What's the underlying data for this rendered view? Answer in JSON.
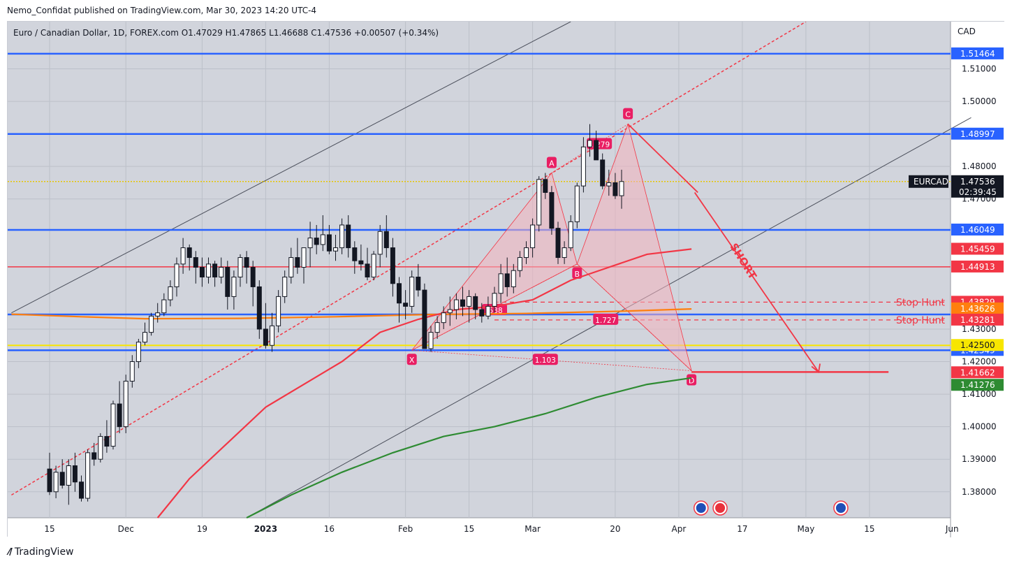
{
  "header": {
    "published": "Nemo_Confidat published on TradingView.com, Mar 30, 2023 14:20 UTC-4"
  },
  "legend": {
    "symbol": "Euro / Canadian Dollar, 1D, FOREX.com",
    "open": "O1.47029",
    "high": "H1.47865",
    "low": "L1.46688",
    "close": "C1.47536",
    "change": "+0.00507 (+0.34%)"
  },
  "footer": {
    "brand": "TradingView"
  },
  "colors": {
    "bg": "#d1d4dc",
    "blue": "#2962ff",
    "red": "#f23645",
    "orange": "#ff7f0e",
    "green": "#2e8b32",
    "yellow": "#f7e600",
    "pattern": "#f4b3bd"
  },
  "chart_data": {
    "type": "candlestick",
    "currency": "CAD",
    "ylim": [
      1.372,
      1.5245
    ],
    "y_ticks": [
      "1.51000",
      "1.50000",
      "1.48000",
      "1.47000",
      "1.43000",
      "1.42000",
      "1.41000",
      "1.40000",
      "1.39000",
      "1.38000"
    ],
    "x_labels": [
      {
        "label": "15",
        "i": 0
      },
      {
        "label": "Dec",
        "i": 12
      },
      {
        "label": "19",
        "i": 24
      },
      {
        "label": "2023",
        "i": 34
      },
      {
        "label": "16",
        "i": 44
      },
      {
        "label": "Feb",
        "i": 56
      },
      {
        "label": "15",
        "i": 66
      },
      {
        "label": "Mar",
        "i": 76
      },
      {
        "label": "20",
        "i": 89
      },
      {
        "label": "Apr",
        "i": 99
      },
      {
        "label": "17",
        "i": 109
      },
      {
        "label": "May",
        "i": 119
      },
      {
        "label": "15",
        "i": 129
      },
      {
        "label": "Jun",
        "i": 142
      }
    ],
    "candles": [
      [
        1.387,
        1.392,
        1.379,
        1.38
      ],
      [
        1.38,
        1.388,
        1.378,
        1.386
      ],
      [
        1.386,
        1.39,
        1.381,
        1.382
      ],
      [
        1.382,
        1.39,
        1.376,
        1.388
      ],
      [
        1.388,
        1.392,
        1.38,
        1.383
      ],
      [
        1.383,
        1.385,
        1.377,
        1.378
      ],
      [
        1.378,
        1.393,
        1.377,
        1.392
      ],
      [
        1.392,
        1.395,
        1.388,
        1.39
      ],
      [
        1.39,
        1.398,
        1.389,
        1.397
      ],
      [
        1.397,
        1.402,
        1.392,
        1.394
      ],
      [
        1.394,
        1.408,
        1.393,
        1.407
      ],
      [
        1.407,
        1.414,
        1.398,
        1.4
      ],
      [
        1.4,
        1.416,
        1.398,
        1.414
      ],
      [
        1.414,
        1.422,
        1.412,
        1.42
      ],
      [
        1.42,
        1.427,
        1.418,
        1.426
      ],
      [
        1.426,
        1.432,
        1.425,
        1.429
      ],
      [
        1.429,
        1.435,
        1.428,
        1.434
      ],
      [
        1.434,
        1.438,
        1.432,
        1.435
      ],
      [
        1.435,
        1.441,
        1.434,
        1.439
      ],
      [
        1.439,
        1.445,
        1.437,
        1.443
      ],
      [
        1.443,
        1.452,
        1.44,
        1.45
      ],
      [
        1.45,
        1.458,
        1.447,
        1.455
      ],
      [
        1.455,
        1.456,
        1.448,
        1.452
      ],
      [
        1.452,
        1.454,
        1.444,
        1.449
      ],
      [
        1.449,
        1.452,
        1.443,
        1.446
      ],
      [
        1.446,
        1.452,
        1.444,
        1.45
      ],
      [
        1.45,
        1.451,
        1.443,
        1.446
      ],
      [
        1.446,
        1.452,
        1.444,
        1.449
      ],
      [
        1.449,
        1.451,
        1.436,
        1.44
      ],
      [
        1.44,
        1.448,
        1.436,
        1.446
      ],
      [
        1.446,
        1.453,
        1.443,
        1.452
      ],
      [
        1.452,
        1.454,
        1.444,
        1.449
      ],
      [
        1.449,
        1.451,
        1.437,
        1.443
      ],
      [
        1.443,
        1.445,
        1.427,
        1.43
      ],
      [
        1.43,
        1.438,
        1.424,
        1.425
      ],
      [
        1.425,
        1.435,
        1.423,
        1.431
      ],
      [
        1.431,
        1.442,
        1.429,
        1.44
      ],
      [
        1.44,
        1.448,
        1.438,
        1.446
      ],
      [
        1.446,
        1.455,
        1.444,
        1.452
      ],
      [
        1.452,
        1.458,
        1.447,
        1.449
      ],
      [
        1.449,
        1.455,
        1.444,
        1.455
      ],
      [
        1.455,
        1.463,
        1.449,
        1.458
      ],
      [
        1.458,
        1.462,
        1.453,
        1.456
      ],
      [
        1.456,
        1.465,
        1.454,
        1.459
      ],
      [
        1.459,
        1.462,
        1.453,
        1.454
      ],
      [
        1.454,
        1.459,
        1.451,
        1.455
      ],
      [
        1.455,
        1.464,
        1.453,
        1.462
      ],
      [
        1.462,
        1.465,
        1.452,
        1.455
      ],
      [
        1.455,
        1.457,
        1.447,
        1.451
      ],
      [
        1.451,
        1.456,
        1.448,
        1.45
      ],
      [
        1.45,
        1.455,
        1.445,
        1.446
      ],
      [
        1.446,
        1.454,
        1.445,
        1.453
      ],
      [
        1.453,
        1.462,
        1.449,
        1.46
      ],
      [
        1.46,
        1.465,
        1.452,
        1.455
      ],
      [
        1.455,
        1.458,
        1.44,
        1.444
      ],
      [
        1.444,
        1.446,
        1.432,
        1.438
      ],
      [
        1.438,
        1.442,
        1.433,
        1.437
      ],
      [
        1.437,
        1.448,
        1.435,
        1.446
      ],
      [
        1.446,
        1.45,
        1.44,
        1.442
      ],
      [
        1.442,
        1.444,
        1.424,
        1.424
      ],
      [
        1.424,
        1.431,
        1.423,
        1.429
      ],
      [
        1.429,
        1.434,
        1.427,
        1.432
      ],
      [
        1.432,
        1.437,
        1.43,
        1.435
      ],
      [
        1.435,
        1.44,
        1.431,
        1.436
      ],
      [
        1.436,
        1.441,
        1.433,
        1.439
      ],
      [
        1.439,
        1.443,
        1.434,
        1.437
      ],
      [
        1.437,
        1.442,
        1.432,
        1.44
      ],
      [
        1.44,
        1.441,
        1.433,
        1.436
      ],
      [
        1.436,
        1.438,
        1.432,
        1.434
      ],
      [
        1.434,
        1.44,
        1.433,
        1.437
      ],
      [
        1.437,
        1.443,
        1.435,
        1.441
      ],
      [
        1.441,
        1.45,
        1.438,
        1.447
      ],
      [
        1.447,
        1.452,
        1.44,
        1.443
      ],
      [
        1.443,
        1.45,
        1.441,
        1.448
      ],
      [
        1.448,
        1.454,
        1.446,
        1.452
      ],
      [
        1.452,
        1.457,
        1.45,
        1.455
      ],
      [
        1.455,
        1.464,
        1.452,
        1.462
      ],
      [
        1.462,
        1.477,
        1.46,
        1.476
      ],
      [
        1.476,
        1.478,
        1.47,
        1.472
      ],
      [
        1.472,
        1.474,
        1.459,
        1.461
      ],
      [
        1.461,
        1.463,
        1.45,
        1.452
      ],
      [
        1.452,
        1.457,
        1.45,
        1.455
      ],
      [
        1.455,
        1.465,
        1.454,
        1.463
      ],
      [
        1.463,
        1.475,
        1.461,
        1.474
      ],
      [
        1.474,
        1.489,
        1.472,
        1.486
      ],
      [
        1.486,
        1.493,
        1.483,
        1.488
      ],
      [
        1.488,
        1.491,
        1.482,
        1.482
      ],
      [
        1.482,
        1.484,
        1.473,
        1.474
      ],
      [
        1.474,
        1.479,
        1.471,
        1.475
      ],
      [
        1.475,
        1.478,
        1.47,
        1.471
      ],
      [
        1.471,
        1.479,
        1.467,
        1.47536
      ]
    ],
    "horizontal_levels": [
      {
        "value": 1.51464,
        "label": "1.51464",
        "color": "#2962ff"
      },
      {
        "value": 1.48997,
        "label": "1.48997",
        "color": "#2962ff"
      },
      {
        "value": 1.46049,
        "label": "1.46049",
        "color": "#2962ff"
      },
      {
        "value": 1.4345,
        "label": "",
        "color": "#2962ff"
      },
      {
        "value": 1.42349,
        "label": "1.42349",
        "color": "#2962ff"
      },
      {
        "value": 1.44913,
        "label": "1.44913",
        "color": "#f23645"
      }
    ],
    "price_tags": [
      {
        "value": 1.47536,
        "label": "1.47536",
        "symbol": "EURCAD",
        "timer": "02:39:45",
        "color": "#131722"
      },
      {
        "value": 1.45459,
        "label": "1.45459",
        "color": "#f23645"
      },
      {
        "value": 1.43829,
        "label": "1.43829",
        "color": "#f23645"
      },
      {
        "value": 1.43626,
        "label": "1.43626",
        "color": "#ff7f0e"
      },
      {
        "value": 1.43281,
        "label": "1.43281",
        "color": "#f23645"
      },
      {
        "value": 1.425,
        "label": "1.42500",
        "color": "#f7e600"
      },
      {
        "value": 1.41662,
        "label": "1.41662",
        "color": "#f23645"
      },
      {
        "value": 1.41276,
        "label": "1.41276",
        "color": "#2e8b32"
      }
    ],
    "stop_hunts": [
      {
        "value": 1.43829,
        "label": "Stop Hunt"
      },
      {
        "value": 1.43281,
        "label": "Stop Hunt"
      }
    ],
    "pattern_points": [
      {
        "name": "X",
        "i": 57,
        "value": 1.4235
      },
      {
        "name": "A",
        "i": 79,
        "value": 1.478
      },
      {
        "name": "B",
        "i": 83,
        "value": 1.45
      },
      {
        "name": "C",
        "i": 91,
        "value": 1.493
      },
      {
        "name": "D",
        "i": 101,
        "value": 1.4172
      }
    ],
    "ratios": [
      {
        "label": "1.279",
        "i": 86.5,
        "value": 1.4868
      },
      {
        "label": ".538",
        "i": 70,
        "value": 1.4358
      },
      {
        "label": "1.727",
        "i": 87.5,
        "value": 1.4328
      },
      {
        "label": "1.103",
        "i": 78,
        "value": 1.4205
      }
    ],
    "annotation": {
      "label": "SHORT",
      "target": 1.4168
    }
  }
}
